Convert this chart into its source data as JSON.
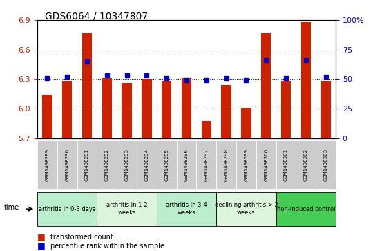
{
  "title": "GDS6064 / 10347807",
  "samples": [
    "GSM1498289",
    "GSM1498290",
    "GSM1498291",
    "GSM1498292",
    "GSM1498293",
    "GSM1498294",
    "GSM1498295",
    "GSM1498296",
    "GSM1498297",
    "GSM1498298",
    "GSM1498299",
    "GSM1498300",
    "GSM1498301",
    "GSM1498302",
    "GSM1498303"
  ],
  "red_values": [
    6.14,
    6.28,
    6.77,
    6.31,
    6.26,
    6.3,
    6.28,
    6.31,
    5.87,
    6.24,
    6.01,
    6.77,
    6.28,
    6.88,
    6.28
  ],
  "blue_values": [
    51,
    52,
    65,
    53,
    53,
    53,
    51,
    49,
    49,
    51,
    49,
    66,
    51,
    66,
    52
  ],
  "ymin": 5.7,
  "ymax": 6.9,
  "y2min": 0,
  "y2max": 100,
  "yticks": [
    5.7,
    6.0,
    6.3,
    6.6,
    6.9
  ],
  "y2ticks": [
    0,
    25,
    50,
    75,
    100
  ],
  "y2ticklabels": [
    "0",
    "25",
    "50",
    "75",
    "100%"
  ],
  "group_spans": [
    {
      "label": "arthritis in 0-3 days",
      "start": 0,
      "end": 3,
      "color": "#bbeecc"
    },
    {
      "label": "arthritis in 1-2\nweeks",
      "start": 3,
      "end": 6,
      "color": "#ddf5dd"
    },
    {
      "label": "arthritis in 3-4\nweeks",
      "start": 6,
      "end": 9,
      "color": "#bbeecc"
    },
    {
      "label": "declining arthritis > 2\nweeks",
      "start": 9,
      "end": 12,
      "color": "#ddf5dd"
    },
    {
      "label": "non-induced control",
      "start": 12,
      "end": 15,
      "color": "#44cc55"
    }
  ],
  "bar_color": "#cc2200",
  "dot_color": "#0000cc",
  "legend_red_label": "transformed count",
  "legend_blue_label": "percentile rank within the sample",
  "time_label": "time",
  "bar_width": 0.5,
  "sample_bg": "#cccccc"
}
